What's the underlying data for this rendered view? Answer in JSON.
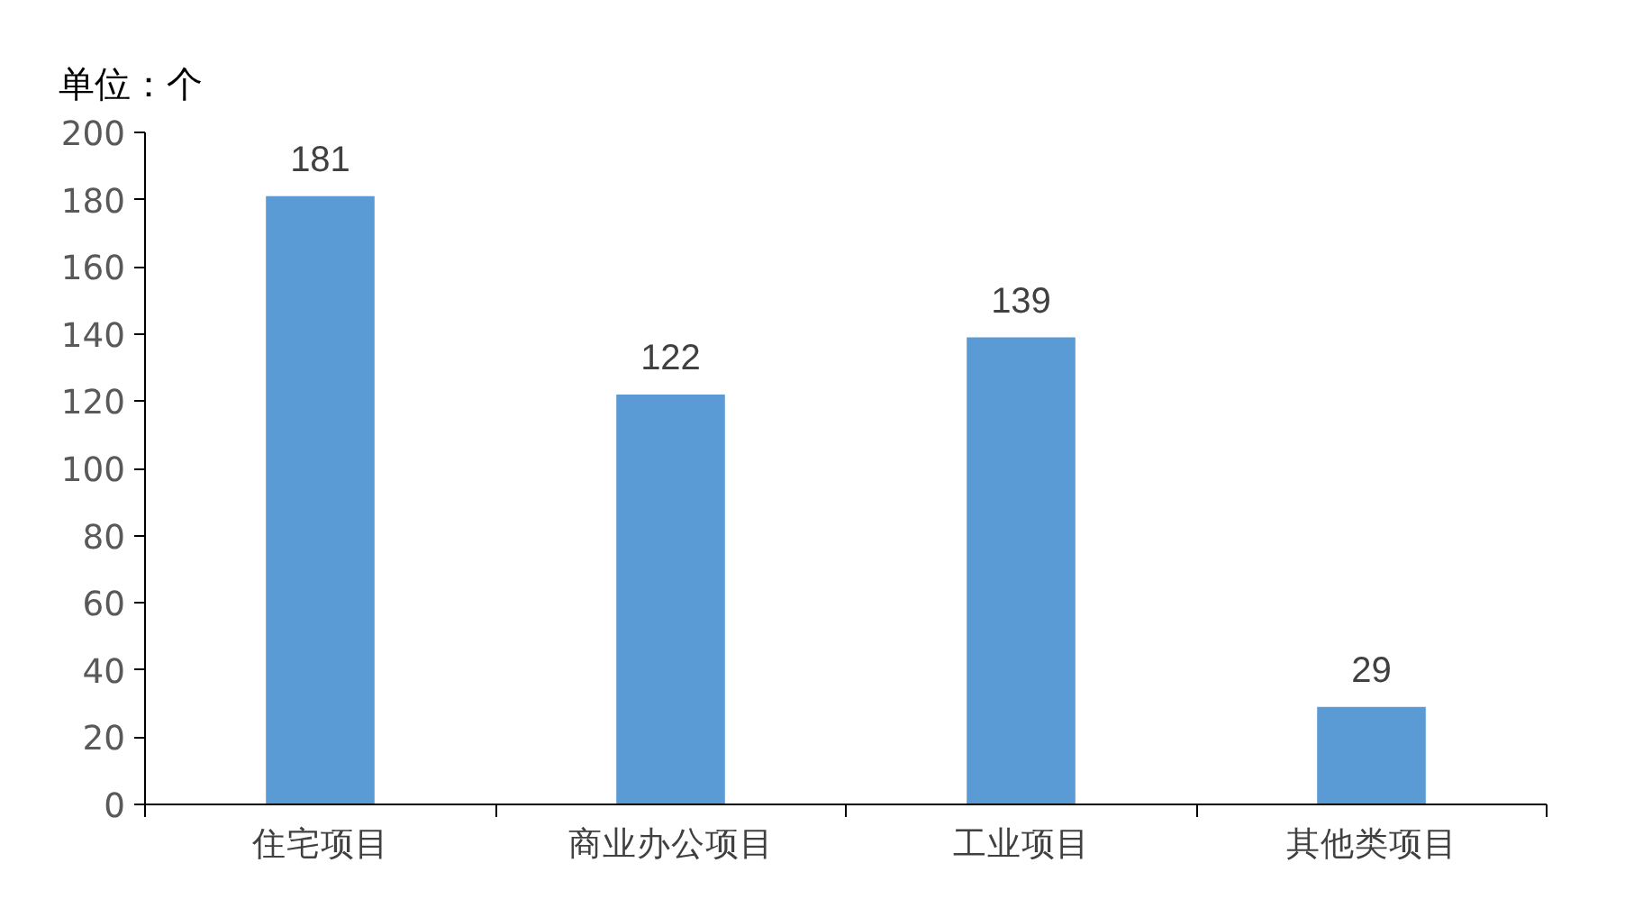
{
  "chart_data": {
    "type": "bar",
    "ylabel": "单位：个",
    "categories": [
      "住宅项目",
      "商业办公项目",
      "工业项目",
      "其他类项目"
    ],
    "values": [
      181,
      122,
      139,
      29
    ],
    "color": "#5b9bd5",
    "ylim": [
      0,
      200
    ],
    "yticks": [
      0,
      20,
      40,
      60,
      80,
      100,
      120,
      140,
      160,
      180,
      200
    ],
    "grid": false,
    "data_labels": true
  }
}
